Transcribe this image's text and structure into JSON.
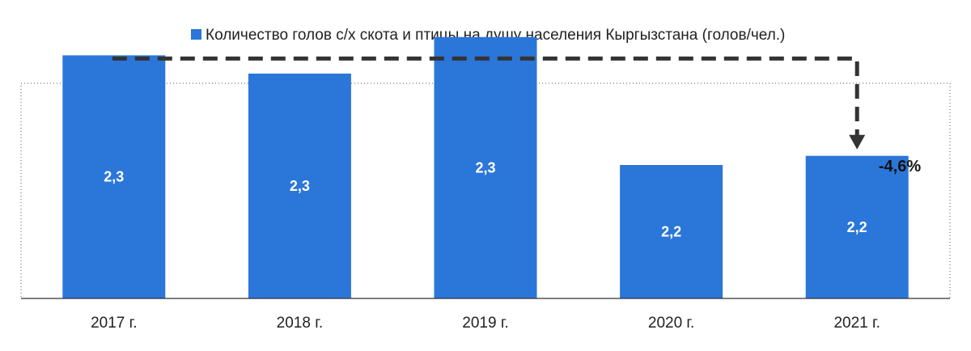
{
  "chart_data": {
    "type": "bar",
    "categories": [
      "2017 г.",
      "2018 г.",
      "2019 г.",
      "2020 г.",
      "2021 г."
    ],
    "series": [
      {
        "name": "Количество голов с/х скота и птицы на душу населения Кыргызстана (голов/чел.)",
        "values": [
          2.31,
          2.29,
          2.33,
          2.19,
          2.2
        ],
        "data_labels": [
          "2,3",
          "2,3",
          "2,3",
          "2,2",
          "2,2"
        ],
        "color": "#2b76d9"
      }
    ],
    "annotation": {
      "text": "-4,6%",
      "from_category": "2017 г.",
      "to_category": "2021 г."
    },
    "legend_position": "top-center",
    "grid": false
  }
}
